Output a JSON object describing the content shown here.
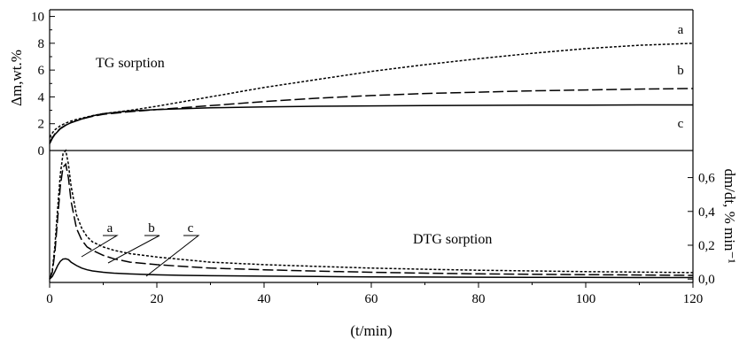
{
  "chart_data": [
    {
      "panel": "top",
      "type": "line",
      "label": "TG sorption",
      "ylabel": "Δm,wt.%",
      "xlim": [
        0,
        120
      ],
      "ylim": [
        0,
        10.5
      ],
      "yticks": [
        0,
        2,
        4,
        6,
        8,
        10
      ],
      "ytick_labels": [
        "0",
        "2",
        "4",
        "6",
        "8",
        "10"
      ],
      "grid": false,
      "series": [
        {
          "name": "a",
          "dash": "3,2",
          "x": [
            0,
            0.5,
            1,
            2,
            3,
            4,
            5,
            6,
            8,
            10,
            15,
            20,
            30,
            40,
            50,
            60,
            70,
            80,
            90,
            100,
            110,
            120
          ],
          "y": [
            1.0,
            1.3,
            1.55,
            1.85,
            2.05,
            2.2,
            2.32,
            2.42,
            2.6,
            2.75,
            3.0,
            3.3,
            4.0,
            4.7,
            5.3,
            5.9,
            6.4,
            6.85,
            7.25,
            7.6,
            7.85,
            8.0
          ]
        },
        {
          "name": "b",
          "dash": "12,4",
          "x": [
            0,
            0.5,
            1,
            2,
            3,
            4,
            5,
            6,
            8,
            10,
            15,
            20,
            30,
            40,
            50,
            60,
            70,
            80,
            90,
            100,
            110,
            120
          ],
          "y": [
            0.6,
            0.95,
            1.25,
            1.65,
            1.9,
            2.08,
            2.22,
            2.35,
            2.55,
            2.7,
            2.9,
            3.05,
            3.35,
            3.65,
            3.9,
            4.1,
            4.25,
            4.35,
            4.45,
            4.52,
            4.58,
            4.62
          ]
        },
        {
          "name": "c",
          "dash": "",
          "x": [
            0,
            0.5,
            1,
            2,
            3,
            4,
            5,
            6,
            8,
            10,
            15,
            20,
            30,
            40,
            50,
            60,
            70,
            80,
            90,
            100,
            110,
            120
          ],
          "y": [
            0.5,
            0.9,
            1.2,
            1.62,
            1.88,
            2.08,
            2.22,
            2.35,
            2.58,
            2.75,
            2.95,
            3.05,
            3.18,
            3.25,
            3.3,
            3.33,
            3.35,
            3.37,
            3.38,
            3.39,
            3.4,
            3.4
          ]
        }
      ]
    },
    {
      "panel": "bottom",
      "type": "line",
      "label": "DTG sorption",
      "ylabel": "dm/dt, % min⁻¹",
      "xlabel": "(t/min)",
      "xlim": [
        0,
        120
      ],
      "ylim": [
        -0.02,
        0.76
      ],
      "xticks": [
        0,
        20,
        40,
        60,
        80,
        100,
        120
      ],
      "xtick_labels": [
        "0",
        "20",
        "40",
        "60",
        "80",
        "100",
        "120"
      ],
      "yticks": [
        0.0,
        0.2,
        0.4,
        0.6
      ],
      "ytick_labels": [
        "0,0",
        "0,2",
        "0,4",
        "0,6"
      ],
      "grid": false,
      "series": [
        {
          "name": "a",
          "dash": "3,2",
          "x": [
            0,
            0.5,
            1,
            1.5,
            2,
            2.5,
            3,
            3.5,
            4,
            5,
            6,
            7,
            8,
            10,
            12,
            15,
            20,
            25,
            30,
            40,
            50,
            60,
            70,
            80,
            90,
            100,
            110,
            120
          ],
          "y": [
            0.0,
            0.05,
            0.2,
            0.42,
            0.62,
            0.74,
            0.76,
            0.68,
            0.55,
            0.38,
            0.3,
            0.25,
            0.22,
            0.19,
            0.17,
            0.15,
            0.13,
            0.115,
            0.1,
            0.085,
            0.075,
            0.065,
            0.058,
            0.052,
            0.048,
            0.044,
            0.041,
            0.038
          ]
        },
        {
          "name": "b",
          "dash": "12,4",
          "x": [
            0,
            0.5,
            1,
            1.5,
            2,
            2.5,
            3,
            3.5,
            4,
            5,
            6,
            7,
            8,
            10,
            12,
            15,
            20,
            25,
            30,
            40,
            50,
            60,
            70,
            80,
            90,
            100,
            110,
            120
          ],
          "y": [
            0.0,
            0.04,
            0.16,
            0.36,
            0.55,
            0.66,
            0.68,
            0.6,
            0.46,
            0.3,
            0.23,
            0.19,
            0.17,
            0.14,
            0.12,
            0.1,
            0.085,
            0.075,
            0.065,
            0.055,
            0.047,
            0.04,
            0.035,
            0.031,
            0.028,
            0.026,
            0.024,
            0.022
          ]
        },
        {
          "name": "c",
          "dash": "",
          "x": [
            0,
            0.5,
            1,
            1.5,
            2,
            2.5,
            3,
            3.5,
            4,
            5,
            6,
            7,
            8,
            10,
            12,
            15,
            20,
            25,
            30,
            40,
            50,
            60,
            70,
            80,
            90,
            100,
            110,
            120
          ],
          "y": [
            0.0,
            0.015,
            0.045,
            0.08,
            0.105,
            0.118,
            0.12,
            0.115,
            0.1,
            0.08,
            0.065,
            0.055,
            0.048,
            0.04,
            0.035,
            0.03,
            0.025,
            0.022,
            0.02,
            0.017,
            0.015,
            0.013,
            0.012,
            0.011,
            0.01,
            0.01,
            0.009,
            0.009
          ]
        }
      ]
    }
  ]
}
